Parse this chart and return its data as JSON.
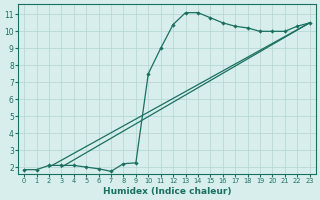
{
  "xlabel": "Humidex (Indice chaleur)",
  "bg_color": "#d8eeed",
  "line_color": "#1a7060",
  "grid_color": "#b8d8d4",
  "xlim": [
    -0.5,
    23.5
  ],
  "ylim": [
    1.6,
    11.6
  ],
  "xticks": [
    0,
    1,
    2,
    3,
    4,
    5,
    6,
    7,
    8,
    9,
    10,
    11,
    12,
    13,
    14,
    15,
    16,
    17,
    18,
    19,
    20,
    21,
    22,
    23
  ],
  "yticks": [
    2,
    3,
    4,
    5,
    6,
    7,
    8,
    9,
    10,
    11
  ],
  "line1_x": [
    0,
    1,
    2,
    3,
    4,
    5,
    6,
    7,
    8,
    9,
    10,
    11,
    12,
    13,
    14,
    15,
    16,
    17,
    18,
    19,
    20,
    21,
    22,
    23
  ],
  "line1_y": [
    1.85,
    1.85,
    2.1,
    2.1,
    2.1,
    2.0,
    1.9,
    1.75,
    2.2,
    2.25,
    7.5,
    9.0,
    10.4,
    11.1,
    11.1,
    10.8,
    10.5,
    10.3,
    10.2,
    10.0,
    10.0,
    10.0,
    10.3,
    10.5
  ],
  "line2_x": [
    2,
    23
  ],
  "line2_y": [
    2.0,
    10.5
  ],
  "line3_x": [
    3,
    23
  ],
  "line3_y": [
    2.0,
    10.5
  ]
}
